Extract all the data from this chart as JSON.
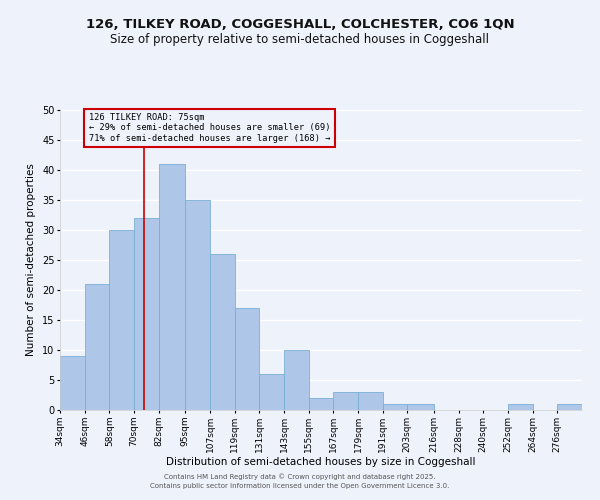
{
  "title1": "126, TILKEY ROAD, COGGESHALL, COLCHESTER, CO6 1QN",
  "title2": "Size of property relative to semi-detached houses in Coggeshall",
  "xlabel": "Distribution of semi-detached houses by size in Coggeshall",
  "ylabel": "Number of semi-detached properties",
  "footer1": "Contains HM Land Registry data © Crown copyright and database right 2025.",
  "footer2": "Contains public sector information licensed under the Open Government Licence 3.0.",
  "bin_labels": [
    "34sqm",
    "46sqm",
    "58sqm",
    "70sqm",
    "82sqm",
    "95sqm",
    "107sqm",
    "119sqm",
    "131sqm",
    "143sqm",
    "155sqm",
    "167sqm",
    "179sqm",
    "191sqm",
    "203sqm",
    "216sqm",
    "228sqm",
    "240sqm",
    "252sqm",
    "264sqm",
    "276sqm"
  ],
  "bin_edges": [
    34,
    46,
    58,
    70,
    82,
    95,
    107,
    119,
    131,
    143,
    155,
    167,
    179,
    191,
    203,
    216,
    228,
    240,
    252,
    264,
    276,
    288
  ],
  "counts": [
    9,
    21,
    30,
    32,
    41,
    35,
    26,
    17,
    6,
    10,
    2,
    3,
    3,
    1,
    1,
    0,
    0,
    0,
    1,
    0,
    1
  ],
  "bar_color": "#aec6e8",
  "bar_edgecolor": "#7aafd4",
  "property_size": 75,
  "annotation_text": "126 TILKEY ROAD: 75sqm\n← 29% of semi-detached houses are smaller (69)\n71% of semi-detached houses are larger (168) →",
  "vline_color": "#cc0000",
  "annotation_box_edgecolor": "#cc0000",
  "ylim": [
    0,
    50
  ],
  "yticks": [
    0,
    5,
    10,
    15,
    20,
    25,
    30,
    35,
    40,
    45,
    50
  ],
  "bg_color": "#eef2fb",
  "grid_color": "#ffffff",
  "title_fontsize": 9.5,
  "subtitle_fontsize": 8.5,
  "axis_fontsize": 7.5
}
